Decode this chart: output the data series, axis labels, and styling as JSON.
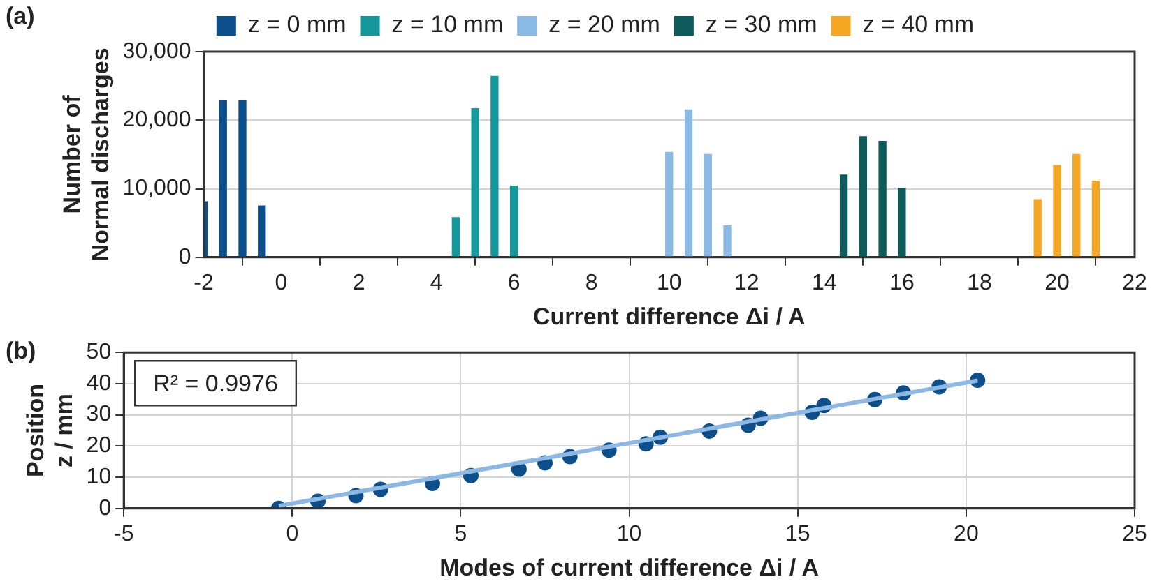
{
  "chart_data": [
    {
      "type": "bar",
      "xlabel": "Current difference Δi / A",
      "ylabel": "Number of\nNormal discharges",
      "annotations": [
        "(a)"
      ],
      "xlim": [
        -2,
        22
      ],
      "xticks": [
        -2,
        0,
        2,
        4,
        6,
        8,
        10,
        12,
        14,
        16,
        18,
        20,
        22
      ],
      "ylim": [
        0,
        30000
      ],
      "yticks": [
        0,
        {
          "value": 10000,
          "label": "10,000"
        },
        {
          "value": 20000,
          "label": "20,000"
        },
        {
          "value": 30000,
          "label": "30,000"
        }
      ],
      "grid": "y",
      "legend": "top",
      "series": [
        {
          "name": "z = 0 mm",
          "color": "#0d4f8b",
          "x": [
            -2,
            -1.5,
            -1,
            -0.5
          ],
          "values": [
            8100,
            22800,
            22800,
            7500
          ]
        },
        {
          "name": "z = 10 mm",
          "color": "#15989b",
          "x": [
            4.5,
            5,
            5.5,
            6
          ],
          "values": [
            5800,
            21700,
            26400,
            10400
          ]
        },
        {
          "name": "z = 20 mm",
          "color": "#8ab9e3",
          "x": [
            10,
            10.5,
            11,
            11.5
          ],
          "values": [
            15300,
            21500,
            15000,
            4600
          ]
        },
        {
          "name": "z = 30 mm",
          "color": "#0d5b5b",
          "x": [
            14.5,
            15,
            15.5,
            16
          ],
          "values": [
            12000,
            17600,
            16900,
            10100
          ]
        },
        {
          "name": "z = 40 mm",
          "color": "#f5a623",
          "x": [
            19.5,
            20,
            20.5,
            21
          ],
          "values": [
            8400,
            13400,
            15000,
            11100
          ]
        }
      ]
    },
    {
      "type": "scatter",
      "xlabel": "Modes of current difference Δi / A",
      "ylabel": "Position\nz / mm",
      "annotations": [
        "(b)",
        "R² = 0.9976"
      ],
      "xlim": [
        -5,
        25
      ],
      "xticks": [
        -5,
        0,
        5,
        10,
        15,
        20,
        25
      ],
      "ylim": [
        0,
        50
      ],
      "yticks": [
        0,
        10,
        20,
        30,
        40,
        50
      ],
      "grid": true,
      "series": [
        {
          "type": "line",
          "marker": "none",
          "color": "#8db8e3",
          "x": [
            -0.4,
            20.34
          ],
          "values": [
            0.8,
            41.0
          ]
        },
        {
          "marker": "circle",
          "color": "#0d4f8b",
          "x": [
            -0.4,
            0.76,
            1.89,
            2.62,
            4.16,
            5.3,
            6.73,
            7.5,
            8.24,
            9.4,
            10.5,
            10.92,
            12.38,
            13.53,
            13.9,
            15.43,
            15.78,
            17.29,
            18.14,
            19.2,
            20.34
          ],
          "values": [
            0,
            2.3,
            4.1,
            6.1,
            8,
            10.5,
            12.6,
            14.6,
            16.6,
            18.7,
            20.7,
            22.8,
            24.8,
            26.7,
            28.9,
            30.8,
            33,
            34.9,
            37,
            39,
            41.1
          ]
        }
      ]
    }
  ]
}
